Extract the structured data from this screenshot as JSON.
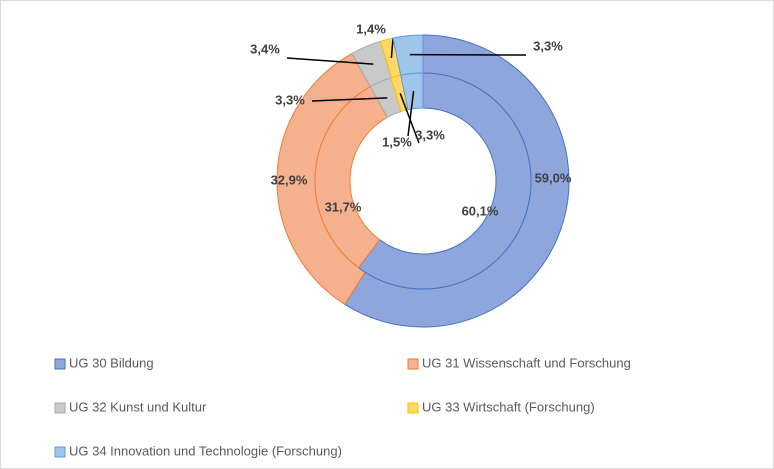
{
  "chart_data": {
    "type": "doughnut",
    "categories": [
      "UG 30 Bildung",
      "UG 31 Wissenschaft und Forschung",
      "UG 32 Kunst und Kultur",
      "UG 33 Wirtschaft (Forschung)",
      "UG 34 Innovation und Technologie (Forschung)"
    ],
    "colors": [
      "#8fa6dc",
      "#f5b08e",
      "#c9c9c9",
      "#ffd966",
      "#9fc5ea"
    ],
    "edge_colors": [
      "#4472c4",
      "#ed7d31",
      "#a5a5a5",
      "#ffc000",
      "#5b9bd5"
    ],
    "series": [
      {
        "values": [
          59.0,
          32.9,
          3.4,
          1.4,
          3.3
        ],
        "value_labels": [
          "59,0%",
          "32,9%",
          "3,4%",
          "1,4%",
          "3,3%"
        ]
      },
      {
        "values": [
          60.1,
          31.7,
          3.3,
          1.5,
          3.3
        ],
        "value_labels": [
          "60,1%",
          "31,7%",
          "3,3%",
          "1,5%",
          "3,3%"
        ]
      }
    ],
    "legend": "bottom"
  }
}
